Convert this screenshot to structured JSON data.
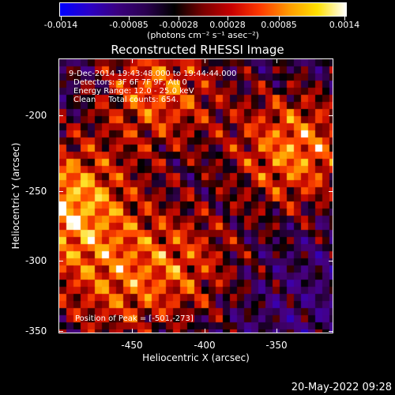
{
  "colorbar": {
    "tick_labels": [
      "-0.0014",
      "-0.00085",
      "-0.00028",
      "0.00028",
      "0.00085",
      "0.0014"
    ],
    "units_label": "(photons cm⁻² s⁻¹ asec⁻²)"
  },
  "plot": {
    "title": "Reconstructed RHESSI Image",
    "x_axis_title": "Heliocentric X (arcsec)",
    "y_axis_title": "Heliocentric Y (arcsec)",
    "x_tick_labels": [
      "-450",
      "-400",
      "-350"
    ],
    "y_tick_labels": [
      "-200",
      "-250",
      "-300",
      "-350"
    ],
    "info_lines": [
      "9-Dec-2014 19:43:48.000 to 19:44:44.000",
      "Detectors: 3F 6F 7F 9F, Att 0",
      "Energy Range: 12.0 - 25.0 keV",
      "Clean     Total counts: 654."
    ],
    "peak_label": "Position of Peak = [-501,-273]"
  },
  "footer": {
    "date": "20-May-2022 09:28"
  },
  "chart_data": {
    "type": "heatmap",
    "title": "Reconstructed RHESSI Image",
    "xlabel": "Heliocentric X (arcsec)",
    "ylabel": "Heliocentric Y (arcsec)",
    "xlim": [
      -500,
      -320
    ],
    "ylim": [
      -355,
      -175
    ],
    "colorbar_range": [
      -0.0014,
      0.0014
    ],
    "peak_position": [
      -501,
      -273
    ],
    "bright_regions": [
      {
        "x": -345,
        "y": -235,
        "level": 0.00125
      },
      {
        "x": -495,
        "y": -270,
        "level": 0.0014
      },
      {
        "x": -435,
        "y": -195,
        "level": 0.0011
      },
      {
        "x": -420,
        "y": -310,
        "level": 0.0009
      },
      {
        "x": -470,
        "y": -330,
        "level": 0.0007
      }
    ],
    "colors": {
      "low": "#0000ff",
      "mid_low": "#3a007f",
      "zero": "#000000",
      "mid_high": "#c80000",
      "high_orange": "#ff9a00",
      "high_yellow": "#ffe000",
      "max": "#ffffff"
    }
  }
}
